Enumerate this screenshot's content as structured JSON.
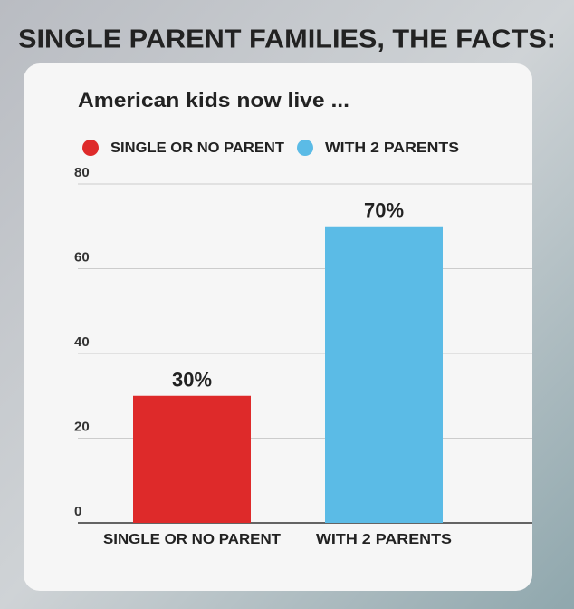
{
  "chart_data": {
    "type": "bar",
    "title": "SINGLE PARENT FAMILIES, THE FACTS:",
    "subtitle": "American kids now live ...",
    "categories": [
      "SINGLE OR NO PARENT",
      "WITH 2 PARENTS"
    ],
    "values": [
      30,
      70
    ],
    "value_labels": [
      "30%",
      "70%"
    ],
    "colors": [
      "#de2a2a",
      "#5bbbe6"
    ],
    "ylim": [
      0,
      80
    ],
    "yticks": [
      0,
      20,
      40,
      60,
      80
    ],
    "grid": true,
    "legend": "top"
  }
}
